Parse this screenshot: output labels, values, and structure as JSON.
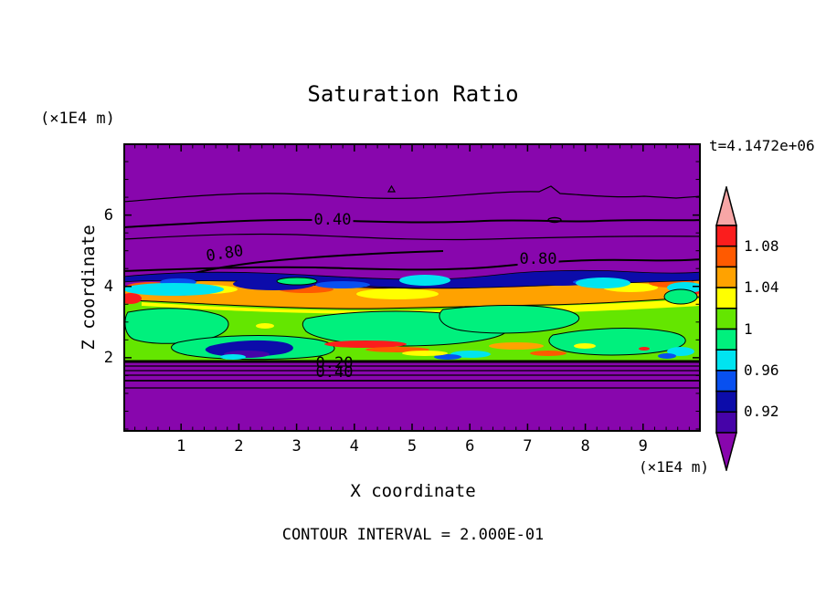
{
  "title": "Saturation Ratio",
  "time_label": "t=4.1472e+06",
  "footer_note": "CONTOUR INTERVAL = 2.000E-01",
  "axes": {
    "x": {
      "label": "X coordinate",
      "unit": "(×1E4 m)",
      "ticks": [
        "1",
        "2",
        "3",
        "4",
        "5",
        "6",
        "7",
        "8",
        "9"
      ]
    },
    "z": {
      "label": "Z coordinate",
      "unit": "(×1E4 m)",
      "ticks": [
        "6",
        "4",
        "2"
      ]
    }
  },
  "contour_labels": {
    "upper_040": "0.40",
    "upper_left_080": "0.80",
    "upper_right_080": "0.80",
    "lower_020": "0.20",
    "lower_040": "0.40"
  },
  "colorbar": {
    "labels": [
      "1.08",
      "1.04",
      "1",
      "0.96",
      "0.92"
    ],
    "label_boundary_index": [
      1,
      3,
      5,
      7,
      9
    ],
    "arrow_top_color": "#f7a6a6",
    "arrow_bottom_color": "#8806ad",
    "cells_top_to_bottom": [
      "#fb1d1d",
      "#ff5a00",
      "#ffa200",
      "#ffff00",
      "#64e600",
      "#00f07d",
      "#00e4f0",
      "#0850f0",
      "#0c0caa",
      "#4603a8"
    ]
  },
  "chart_data": {
    "type": "heatmap",
    "variant": "filled-contour-plot",
    "title": "Saturation Ratio",
    "xlabel": "X coordinate",
    "ylabel": "Z coordinate",
    "x_unit": "(×1E4 m)",
    "y_unit": "(×1E4 m)",
    "xlim": [
      0,
      10
    ],
    "ylim": [
      0,
      8.1
    ],
    "x_ticks": [
      1,
      2,
      3,
      4,
      5,
      6,
      7,
      8,
      9
    ],
    "y_ticks": [
      2,
      4,
      6
    ],
    "time_label": "t=4.1472e+06",
    "contour_interval": 0.2,
    "labeled_line_contours": [
      0.2,
      0.4,
      0.8
    ],
    "fill_levels": [
      0.9,
      0.92,
      0.94,
      0.96,
      0.98,
      1.0,
      1.02,
      1.04,
      1.06,
      1.08,
      1.1
    ],
    "fill_colors_low_to_high": [
      "#8806ad",
      "#4603a8",
      "#0c0caa",
      "#0850f0",
      "#00e4f0",
      "#00f07d",
      "#64e600",
      "#ffff00",
      "#ffa200",
      "#ff5a00",
      "#fb1d1d",
      "#f7a6a6"
    ],
    "colorbar_tick_labels": [
      "1.08",
      "1.04",
      "1",
      "0.96",
      "0.92"
    ],
    "grid": false,
    "legend_position": "right-colorbar",
    "field_regions": [
      {
        "z_range": [
          4.5,
          8.1
        ],
        "saturation": "< 0.9",
        "fill": "purple background with thin horizontal line contours at 0.2, 0.4 (labeled), 0.6, 0.8 (labeled) decreasing upward"
      },
      {
        "z_range": [
          4.1,
          4.5
        ],
        "saturation": "0.90-0.96",
        "fill": "thin dark-blue/navy band with cyan fringes"
      },
      {
        "z_range": [
          3.7,
          4.2
        ],
        "saturation": "1.04-1.10",
        "fill": "orange and red maximum layer with yellow patches"
      },
      {
        "z_range": [
          2.0,
          3.8
        ],
        "saturation": "0.98-1.04",
        "fill": "mottled yellow-green layer with large spring-green lakes and scattered cyan, blue, orange and red specks"
      },
      {
        "z_range": [
          0.0,
          2.0
        ],
        "saturation": "< 0.9",
        "fill": "purple; tight stack of line contours 0.8 to 0.2 (labels 0.20 and 0.40 overlap) just below z=2"
      }
    ]
  }
}
